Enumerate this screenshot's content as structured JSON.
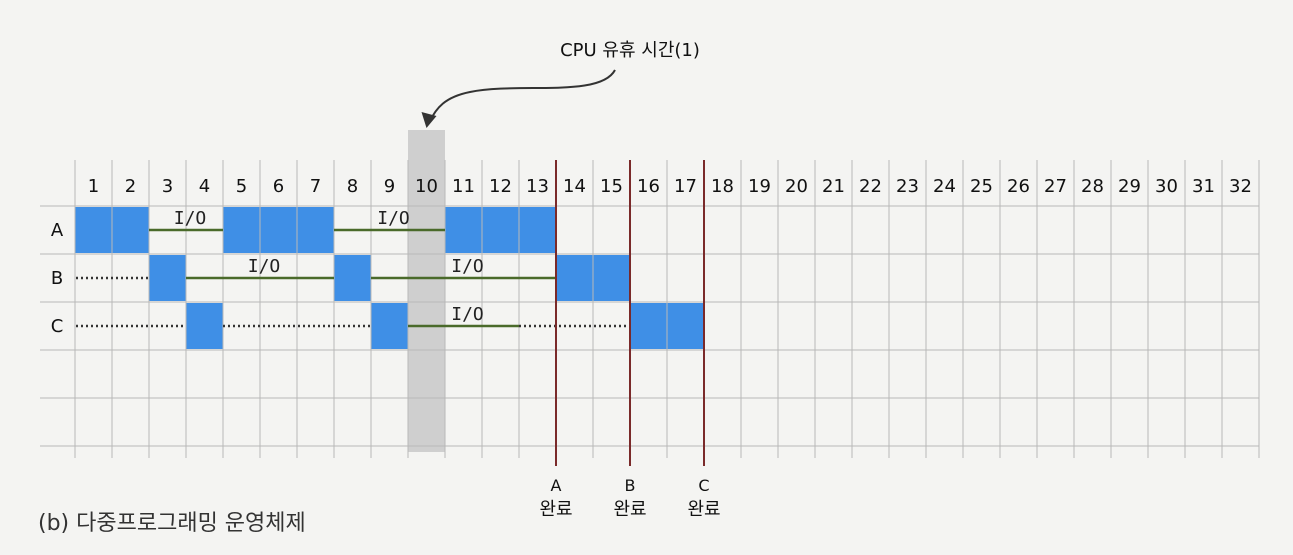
{
  "callout": {
    "text": "CPU 유휴 시간(1)"
  },
  "caption": {
    "text": "(b) 다중프로그래밍 운영체제"
  },
  "columns": [
    "1",
    "2",
    "3",
    "4",
    "5",
    "6",
    "7",
    "8",
    "9",
    "10",
    "11",
    "12",
    "13",
    "14",
    "15",
    "16",
    "17",
    "18",
    "19",
    "20",
    "21",
    "22",
    "23",
    "24",
    "25",
    "26",
    "27",
    "28",
    "29",
    "30",
    "31",
    "32"
  ],
  "rows": [
    "A",
    "B",
    "C"
  ],
  "io_label": "I/O",
  "colors": {
    "cpu_block": "#3f8fe6",
    "idle_highlight": "#cfcfcf",
    "grid": "#b8b8b8",
    "io_line": "#4a6a2a",
    "completion_line": "#7a2a2a",
    "wait_dots": "#333333"
  },
  "schedule": [
    {
      "row": "A",
      "cpu": [
        [
          1,
          2
        ],
        [
          5,
          7
        ],
        [
          11,
          13
        ]
      ],
      "io": [
        [
          3,
          4
        ],
        [
          8,
          10
        ]
      ],
      "wait": []
    },
    {
      "row": "B",
      "cpu": [
        [
          3,
          3
        ],
        [
          8,
          8
        ],
        [
          14,
          15
        ]
      ],
      "io": [
        [
          4,
          7
        ],
        [
          9,
          13
        ]
      ],
      "wait": [
        [
          1,
          2
        ]
      ]
    },
    {
      "row": "C",
      "cpu": [
        [
          4,
          4
        ],
        [
          9,
          9
        ],
        [
          16,
          17
        ]
      ],
      "io": [
        [
          10,
          12
        ]
      ],
      "wait": [
        [
          1,
          3
        ],
        [
          5,
          8
        ],
        [
          13,
          15
        ]
      ]
    }
  ],
  "idle_columns": [
    10
  ],
  "completions": [
    {
      "process": "A",
      "after_column": 13,
      "line1": "A",
      "line2": "완료"
    },
    {
      "process": "B",
      "after_column": 15,
      "line1": "B",
      "line2": "완료"
    },
    {
      "process": "C",
      "after_column": 17,
      "line1": "C",
      "line2": "완료"
    }
  ]
}
